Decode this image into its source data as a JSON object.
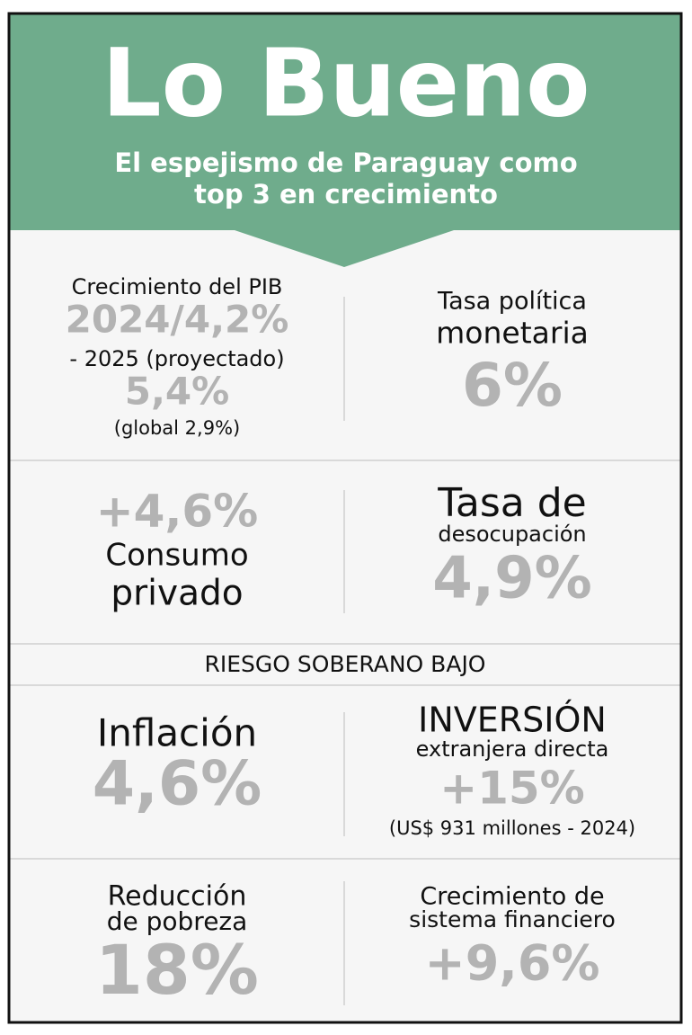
{
  "header": {
    "title": "Lo Bueno",
    "subtitle": [
      "El espejismo de Paraguay como",
      "top 3 en crecimiento"
    ]
  },
  "panels": [
    {
      "lines": [
        "Crecimiento del PIB",
        "2024/4,2%",
        "- 2025 (proyectado)",
        "5,4%",
        "(global 2,9%)"
      ]
    },
    {
      "lines": [
        "Tasa política",
        "monetaria",
        "6%"
      ]
    },
    {
      "lines": [
        "+4,6%",
        "Consumo",
        "privado"
      ]
    },
    {
      "lines": [
        "Tasa de",
        "desocupación",
        "4,9%"
      ]
    },
    {
      "lines": [
        "Inflación",
        "4,6%"
      ]
    },
    {
      "lines": [
        "INVERSIÓN",
        "extranjera directa",
        "+15%",
        "(US$ 931 millones - 2024)"
      ]
    },
    {
      "lines": [
        "Reducción",
        "de pobreza",
        "18%"
      ]
    },
    {
      "lines": [
        "Crecimiento de",
        "sistema financiero",
        "+9,6%"
      ]
    }
  ],
  "banner": "RIESGO SOBERANO BAJO"
}
